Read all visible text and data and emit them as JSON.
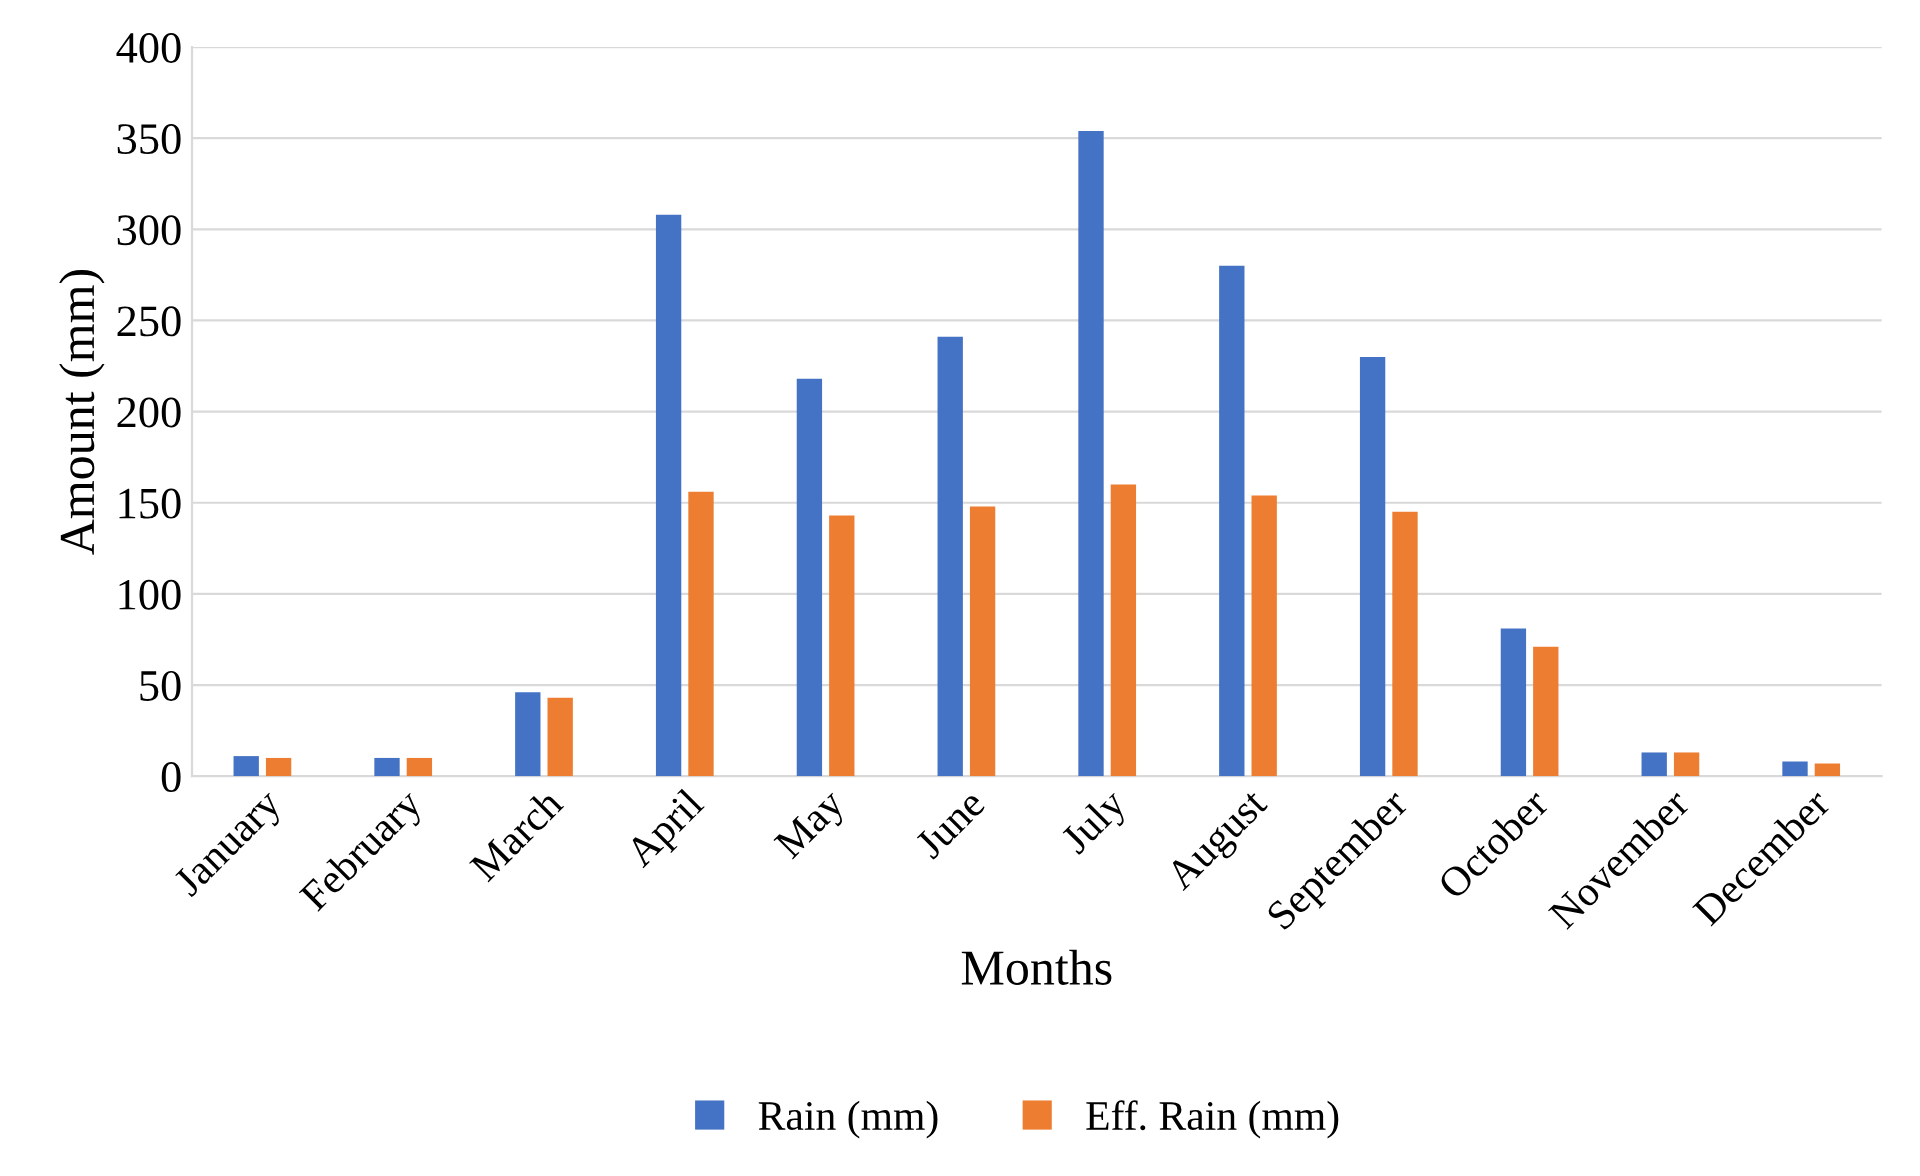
{
  "chart_data": {
    "type": "bar",
    "xlabel": "Months",
    "ylabel": "Amount (mm)",
    "categories": [
      "January",
      "February",
      "March",
      "April",
      "May",
      "June",
      "July",
      "August",
      "September",
      "October",
      "November",
      "December"
    ],
    "series": [
      {
        "name": "Rain (mm)",
        "color": "#4472c4",
        "values": [
          11,
          10,
          46,
          308,
          218,
          241,
          354,
          280,
          230,
          81,
          13,
          8
        ]
      },
      {
        "name": "Eff. Rain (mm)",
        "color": "#ed7d31",
        "values": [
          10,
          10,
          43,
          156,
          143,
          148,
          160,
          154,
          145,
          71,
          13,
          7
        ]
      }
    ],
    "ylim": [
      0,
      400
    ],
    "yticks": [
      0,
      50,
      100,
      150,
      200,
      250,
      300,
      350,
      400
    ],
    "grid": "y",
    "legend": "bottom"
  }
}
